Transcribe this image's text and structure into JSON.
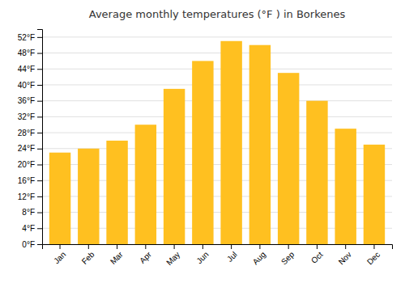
{
  "chart_data": {
    "type": "bar",
    "title": "Average monthly temperatures (°F ) in Borkenes",
    "categories": [
      "Jan",
      "Feb",
      "Mar",
      "Apr",
      "May",
      "Jun",
      "Jul",
      "Aug",
      "Sep",
      "Oct",
      "Nov",
      "Dec"
    ],
    "values": [
      23,
      24,
      26,
      30,
      39,
      46,
      51,
      50,
      43,
      36,
      29,
      25
    ],
    "color": "#FFC020",
    "ylim": [
      0,
      54
    ],
    "yticks": [
      {
        "value": 0,
        "label": "0°F"
      },
      {
        "value": 4,
        "label": "4°F"
      },
      {
        "value": 8,
        "label": "8°F"
      },
      {
        "value": 12,
        "label": "12°F"
      },
      {
        "value": 16,
        "label": "16°F"
      },
      {
        "value": 20,
        "label": "20°F"
      },
      {
        "value": 24,
        "label": "24°F"
      },
      {
        "value": 28,
        "label": "28°F"
      },
      {
        "value": 32,
        "label": "32°F"
      },
      {
        "value": 36,
        "label": "36°F"
      },
      {
        "value": 40,
        "label": "40°F"
      },
      {
        "value": 44,
        "label": "44°F"
      },
      {
        "value": 48,
        "label": "48°F"
      },
      {
        "value": 52,
        "label": "52°F"
      }
    ],
    "grid": true
  }
}
